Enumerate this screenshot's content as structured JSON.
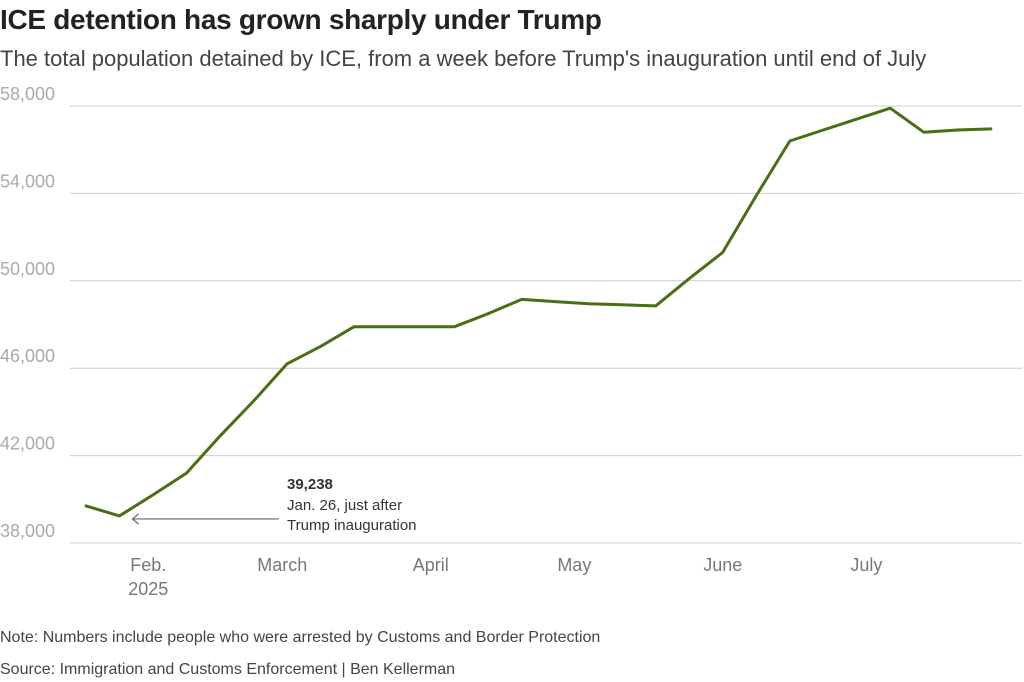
{
  "header": {
    "title": "ICE detention has grown sharply under Trump",
    "subtitle": "The total population detained by ICE, from a week before Trump's inauguration until end of July"
  },
  "footer": {
    "note": "Note: Numbers include people who were arrested by Customs and Border Protection",
    "source": "Source: Immigration and Customs Enforcement | Ben Kellerman"
  },
  "colors": {
    "line": "#4a6e12",
    "grid": "#cccccc",
    "arrow": "#666666"
  },
  "chart_data": {
    "type": "line",
    "title": "ICE detention has grown sharply under Trump",
    "xlabel": "",
    "ylabel": "",
    "ylim": [
      38000,
      58000
    ],
    "yticks": [
      38000,
      42000,
      46000,
      50000,
      54000,
      58000
    ],
    "ytick_labels": [
      "38,000",
      "42,000",
      "46,000",
      "50,000",
      "54,000",
      "58,000"
    ],
    "x_unit": "days since Jan 1, 2025",
    "xlim": [
      19,
      212
    ],
    "xticks": [
      {
        "x": 32,
        "label": "Feb.",
        "sublabel": "2025"
      },
      {
        "x": 60,
        "label": "March"
      },
      {
        "x": 91,
        "label": "April"
      },
      {
        "x": 121,
        "label": "May"
      },
      {
        "x": 152,
        "label": "June"
      },
      {
        "x": 182,
        "label": "July"
      }
    ],
    "series": [
      {
        "name": "Total population detained by ICE",
        "x": [
          19,
          26,
          33,
          40,
          47,
          54,
          61,
          68,
          75,
          82,
          89,
          96,
          103,
          110,
          117,
          124,
          131,
          138,
          145,
          152,
          159,
          166,
          173,
          180,
          187,
          194,
          201,
          208
        ],
        "y": [
          39700,
          39238,
          40200,
          41200,
          42900,
          44500,
          46200,
          47000,
          47900,
          47900,
          47900,
          47900,
          48500,
          49150,
          49050,
          48950,
          48900,
          48850,
          50100,
          51300,
          53900,
          56400,
          56900,
          57400,
          57900,
          56800,
          56900,
          56950
        ]
      }
    ],
    "annotations": [
      {
        "x": 26,
        "y": 39238,
        "value": "39,238",
        "lines": [
          "Jan. 26, just after",
          "Trump inauguration"
        ]
      }
    ],
    "grid": true,
    "legend": "none"
  }
}
